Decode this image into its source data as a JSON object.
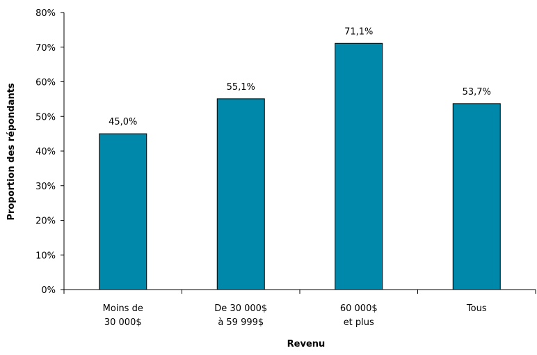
{
  "chart_data": {
    "type": "bar",
    "categories": [
      [
        "Moins de",
        "30 000$"
      ],
      [
        "De 30 000$",
        "à 59 999$"
      ],
      [
        "60 000$",
        "et plus"
      ],
      [
        "Tous"
      ]
    ],
    "values": [
      45.0,
      55.1,
      71.1,
      53.7
    ],
    "data_labels": [
      "45,0%",
      "55,1%",
      "71,1%",
      "53,7%"
    ],
    "xlabel": "Revenu",
    "ylabel": "Proportion des répondants",
    "ylim": [
      0,
      80
    ],
    "yticks": [
      0,
      10,
      20,
      30,
      40,
      50,
      60,
      70,
      80
    ],
    "ytick_labels": [
      "0%",
      "10%",
      "20%",
      "30%",
      "40%",
      "50%",
      "60%",
      "70%",
      "80%"
    ],
    "grid": false,
    "legend": "none",
    "bar_color": "#0088aa",
    "bar_edge_color": "#000000"
  }
}
